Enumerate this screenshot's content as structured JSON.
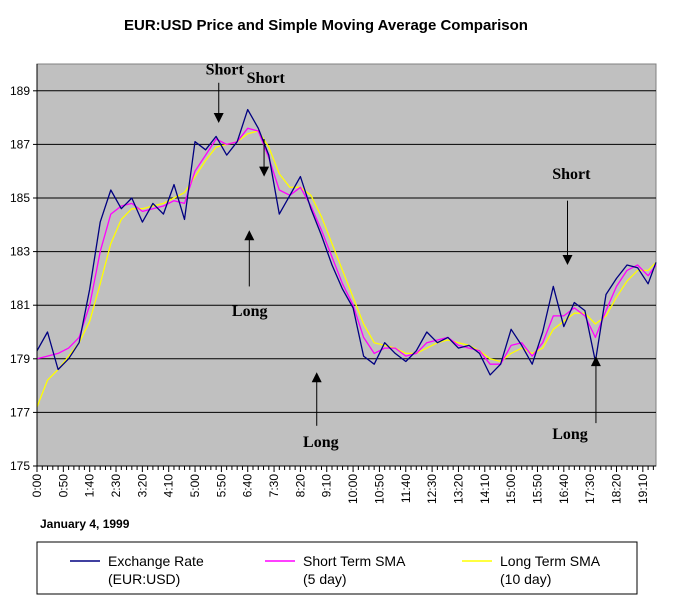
{
  "chart_data": {
    "type": "line",
    "title": "EUR:USD Price and Simple Moving Average Comparison",
    "date_label": "January 4, 1999",
    "ylim": [
      175,
      190
    ],
    "yticks": [
      175,
      177,
      179,
      181,
      183,
      185,
      187,
      189
    ],
    "xlim": [
      0,
      1175
    ],
    "xtick_labels": [
      "0:00",
      "0:50",
      "1:40",
      "2:30",
      "3:20",
      "4:10",
      "5:00",
      "5:50",
      "6:40",
      "7:30",
      "8:20",
      "9:10",
      "10:00",
      "10:50",
      "11:40",
      "12:30",
      "13:20",
      "14:10",
      "15:00",
      "15:50",
      "16:40",
      "17:30",
      "18:20",
      "19:10"
    ],
    "grid": true,
    "plot_background": "#c0c0c0",
    "series_colors": {
      "price": "#000080",
      "short": "#ff00ff",
      "long": "#ffff00"
    },
    "series": [
      {
        "name": "Exchange Rate (EUR:USD)",
        "x": [
          0,
          20,
          40,
          60,
          80,
          100,
          120,
          140,
          160,
          180,
          200,
          220,
          240,
          260,
          280,
          300,
          320,
          340,
          360,
          380,
          400,
          420,
          440,
          460,
          480,
          500,
          520,
          540,
          560,
          580,
          600,
          620,
          640,
          660,
          680,
          700,
          720,
          740,
          760,
          780,
          800,
          820,
          840,
          860,
          880,
          900,
          920,
          940,
          960,
          980,
          1000,
          1020,
          1040,
          1060,
          1080,
          1100,
          1120,
          1140,
          1160,
          1175
        ],
        "values": [
          179.3,
          180.0,
          178.6,
          179.0,
          179.6,
          181.6,
          184.1,
          185.3,
          184.6,
          185.0,
          184.1,
          184.8,
          184.4,
          185.5,
          184.2,
          187.1,
          186.8,
          187.3,
          186.6,
          187.1,
          188.3,
          187.6,
          186.6,
          184.4,
          185.1,
          185.8,
          184.6,
          183.6,
          182.5,
          181.6,
          180.9,
          179.1,
          178.8,
          179.6,
          179.2,
          178.9,
          179.3,
          180.0,
          179.6,
          179.8,
          179.4,
          179.5,
          179.2,
          178.4,
          178.8,
          180.1,
          179.5,
          178.8,
          180.0,
          181.7,
          180.2,
          181.1,
          180.8,
          178.9,
          181.4,
          182.0,
          182.5,
          182.4,
          181.8,
          182.6
        ]
      },
      {
        "name": "Short Term SMA (5 day)",
        "x": [
          0,
          20,
          40,
          60,
          80,
          100,
          120,
          140,
          160,
          180,
          200,
          220,
          240,
          260,
          280,
          300,
          320,
          340,
          360,
          380,
          400,
          420,
          440,
          460,
          480,
          500,
          520,
          540,
          560,
          580,
          600,
          620,
          640,
          660,
          680,
          700,
          720,
          740,
          760,
          780,
          800,
          820,
          840,
          860,
          880,
          900,
          920,
          940,
          960,
          980,
          1000,
          1020,
          1040,
          1060,
          1080,
          1100,
          1120,
          1140,
          1160,
          1175
        ],
        "values": [
          179.0,
          179.1,
          179.2,
          179.4,
          179.8,
          181.0,
          183.0,
          184.4,
          184.7,
          184.8,
          184.5,
          184.6,
          184.7,
          184.9,
          184.8,
          186.0,
          186.6,
          187.2,
          187.0,
          187.1,
          187.6,
          187.5,
          186.5,
          185.3,
          185.1,
          185.4,
          184.7,
          183.8,
          182.8,
          181.8,
          181.0,
          179.8,
          179.2,
          179.4,
          179.4,
          179.1,
          179.2,
          179.6,
          179.7,
          179.8,
          179.5,
          179.4,
          179.3,
          178.8,
          178.8,
          179.5,
          179.6,
          179.1,
          179.6,
          180.6,
          180.6,
          180.9,
          180.6,
          179.8,
          180.8,
          181.7,
          182.3,
          182.5,
          182.1,
          182.5
        ]
      },
      {
        "name": "Long Term SMA (10 day)",
        "x": [
          0,
          20,
          40,
          60,
          80,
          100,
          120,
          140,
          160,
          180,
          200,
          220,
          240,
          260,
          280,
          300,
          320,
          340,
          360,
          380,
          400,
          420,
          440,
          460,
          480,
          500,
          520,
          540,
          560,
          580,
          600,
          620,
          640,
          660,
          680,
          700,
          720,
          740,
          760,
          780,
          800,
          820,
          840,
          860,
          880,
          900,
          920,
          940,
          960,
          980,
          1000,
          1020,
          1040,
          1060,
          1080,
          1100,
          1120,
          1140,
          1160,
          1175
        ],
        "values": [
          177.2,
          178.2,
          178.6,
          179.1,
          179.6,
          180.4,
          181.8,
          183.3,
          184.2,
          184.6,
          184.6,
          184.7,
          184.8,
          185.0,
          185.2,
          185.8,
          186.4,
          186.9,
          187.0,
          187.1,
          187.4,
          187.5,
          186.9,
          185.9,
          185.4,
          185.4,
          185.1,
          184.3,
          183.3,
          182.3,
          181.3,
          180.3,
          179.6,
          179.5,
          179.4,
          179.2,
          179.2,
          179.4,
          179.6,
          179.7,
          179.6,
          179.5,
          179.3,
          179.0,
          178.9,
          179.2,
          179.4,
          179.2,
          179.4,
          180.1,
          180.4,
          180.7,
          180.7,
          180.3,
          180.6,
          181.3,
          181.9,
          182.3,
          182.3,
          182.6
        ]
      }
    ],
    "annotations": [
      {
        "label": "Short",
        "text_x": 320,
        "text_y": 189.6,
        "arrow_x": 345,
        "arrow_from": 189.3,
        "arrow_to": 187.8
      },
      {
        "label": "Short",
        "text_x": 398,
        "text_y": 189.3,
        "arrow_x": 431,
        "arrow_from": 187.2,
        "arrow_to": 185.8
      },
      {
        "label": "Long",
        "text_x": 370,
        "text_y": 180.6,
        "arrow_x": 403,
        "arrow_from": 181.7,
        "arrow_to": 183.8
      },
      {
        "label": "Long",
        "text_x": 505,
        "text_y": 175.7,
        "arrow_x": 531,
        "arrow_from": 176.5,
        "arrow_to": 178.5
      },
      {
        "label": "Short",
        "text_x": 978,
        "text_y": 185.7,
        "arrow_x": 1007,
        "arrow_from": 184.9,
        "arrow_to": 182.5
      },
      {
        "label": "Long",
        "text_x": 978,
        "text_y": 176.0,
        "arrow_x": 1061,
        "arrow_from": 176.6,
        "arrow_to": 179.1
      }
    ],
    "legend": [
      {
        "line1": "Exchange Rate",
        "line2": "(EUR:USD)",
        "color": "#000080"
      },
      {
        "line1": "Short Term SMA",
        "line2": "(5 day)",
        "color": "#ff00ff"
      },
      {
        "line1": "Long Term SMA",
        "line2": "(10 day)",
        "color": "#ffff00"
      }
    ]
  }
}
